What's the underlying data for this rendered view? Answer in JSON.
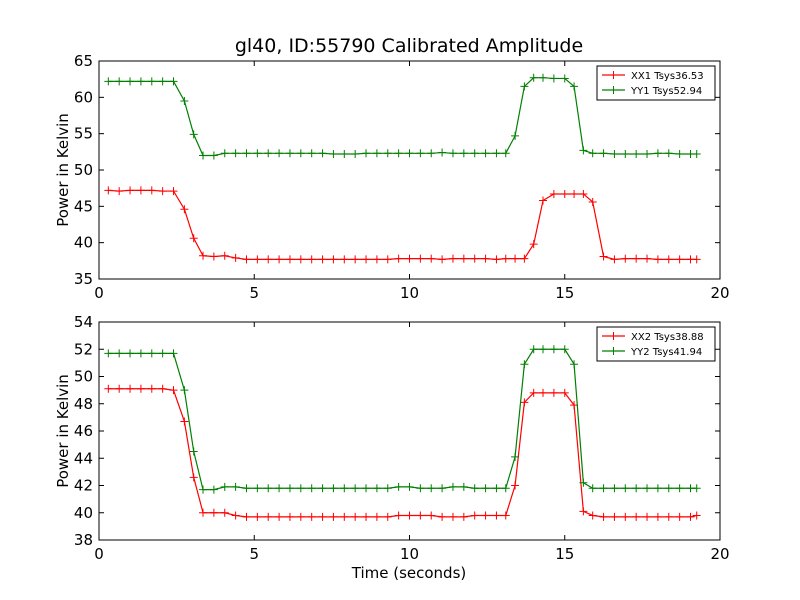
{
  "chart_data": [
    {
      "type": "line",
      "title": "gl40, ID:55790 Calibrated Amplitude",
      "xlabel": "",
      "ylabel": "Power in Kelvin",
      "xlim": [
        0,
        20
      ],
      "ylim": [
        35,
        65
      ],
      "xticks": [
        0,
        5,
        10,
        15,
        20
      ],
      "yticks": [
        35,
        40,
        45,
        50,
        55,
        60,
        65
      ],
      "grid": false,
      "legend_position": "top-right",
      "x": [
        0.3,
        0.65,
        1.0,
        1.35,
        1.7,
        2.05,
        2.4,
        2.75,
        3.05,
        3.35,
        3.7,
        4.05,
        4.4,
        4.75,
        5.1,
        5.45,
        5.8,
        6.15,
        6.5,
        6.85,
        7.2,
        7.55,
        7.9,
        8.25,
        8.6,
        8.95,
        9.3,
        9.65,
        10.0,
        10.35,
        10.7,
        11.05,
        11.4,
        11.75,
        12.1,
        12.45,
        12.8,
        13.1,
        13.4,
        13.7,
        14.0,
        14.3,
        14.65,
        15.0,
        15.3,
        15.6,
        15.9,
        16.25,
        16.6,
        16.95,
        17.3,
        17.65,
        18.0,
        18.35,
        18.7,
        19.05,
        19.25
      ],
      "series": [
        {
          "name": "XX1 Tsys36.53",
          "color": "#ff0000",
          "y": [
            47.2,
            47.1,
            47.2,
            47.2,
            47.2,
            47.1,
            47.1,
            44.6,
            40.6,
            38.2,
            38.1,
            38.2,
            37.9,
            37.7,
            37.7,
            37.7,
            37.7,
            37.7,
            37.7,
            37.7,
            37.7,
            37.7,
            37.7,
            37.7,
            37.7,
            37.7,
            37.7,
            37.8,
            37.8,
            37.8,
            37.8,
            37.7,
            37.8,
            37.8,
            37.8,
            37.8,
            37.7,
            37.8,
            37.8,
            37.8,
            39.8,
            45.8,
            46.7,
            46.7,
            46.7,
            46.7,
            45.6,
            38.1,
            37.7,
            37.8,
            37.8,
            37.8,
            37.7,
            37.7,
            37.7,
            37.7,
            37.7
          ]
        },
        {
          "name": "YY1 Tsys52.94",
          "color": "#008000",
          "y": [
            62.2,
            62.2,
            62.2,
            62.2,
            62.2,
            62.2,
            62.2,
            59.5,
            54.9,
            52.0,
            52.0,
            52.3,
            52.3,
            52.3,
            52.3,
            52.3,
            52.3,
            52.3,
            52.3,
            52.3,
            52.3,
            52.2,
            52.2,
            52.2,
            52.3,
            52.3,
            52.3,
            52.3,
            52.3,
            52.3,
            52.3,
            52.4,
            52.3,
            52.3,
            52.3,
            52.3,
            52.3,
            52.3,
            54.7,
            61.5,
            62.7,
            62.7,
            62.6,
            62.6,
            61.5,
            52.7,
            52.3,
            52.3,
            52.2,
            52.2,
            52.2,
            52.2,
            52.3,
            52.3,
            52.2,
            52.2,
            52.2
          ]
        }
      ]
    },
    {
      "type": "line",
      "title": "",
      "xlabel": "Time (seconds)",
      "ylabel": "Power in Kelvin",
      "xlim": [
        0,
        20
      ],
      "ylim": [
        38,
        54
      ],
      "xticks": [
        0,
        5,
        10,
        15,
        20
      ],
      "yticks": [
        38,
        40,
        42,
        44,
        46,
        48,
        50,
        52,
        54
      ],
      "grid": false,
      "legend_position": "top-right",
      "x": [
        0.3,
        0.65,
        1.0,
        1.35,
        1.7,
        2.05,
        2.4,
        2.75,
        3.05,
        3.35,
        3.7,
        4.05,
        4.4,
        4.75,
        5.1,
        5.45,
        5.8,
        6.15,
        6.5,
        6.85,
        7.2,
        7.55,
        7.9,
        8.25,
        8.6,
        8.95,
        9.3,
        9.65,
        10.0,
        10.35,
        10.7,
        11.05,
        11.4,
        11.75,
        12.1,
        12.45,
        12.8,
        13.1,
        13.4,
        13.7,
        14.0,
        14.3,
        14.65,
        15.0,
        15.3,
        15.6,
        15.9,
        16.25,
        16.6,
        16.95,
        17.3,
        17.65,
        18.0,
        18.35,
        18.7,
        19.05,
        19.25
      ],
      "series": [
        {
          "name": "XX2 Tsys38.88",
          "color": "#ff0000",
          "y": [
            49.1,
            49.1,
            49.1,
            49.1,
            49.1,
            49.1,
            49.0,
            46.7,
            42.6,
            40.0,
            40.0,
            40.0,
            39.8,
            39.7,
            39.7,
            39.7,
            39.7,
            39.7,
            39.7,
            39.7,
            39.7,
            39.7,
            39.7,
            39.7,
            39.7,
            39.7,
            39.7,
            39.8,
            39.8,
            39.8,
            39.8,
            39.7,
            39.7,
            39.7,
            39.8,
            39.8,
            39.8,
            39.8,
            42.0,
            48.1,
            48.8,
            48.8,
            48.8,
            48.8,
            47.9,
            40.1,
            39.8,
            39.7,
            39.7,
            39.7,
            39.7,
            39.7,
            39.7,
            39.7,
            39.7,
            39.7,
            39.8
          ]
        },
        {
          "name": "YY2 Tsys41.94",
          "color": "#008000",
          "y": [
            51.7,
            51.7,
            51.7,
            51.7,
            51.7,
            51.7,
            51.7,
            49.0,
            44.5,
            41.7,
            41.7,
            41.9,
            41.9,
            41.8,
            41.8,
            41.8,
            41.8,
            41.8,
            41.8,
            41.8,
            41.8,
            41.8,
            41.8,
            41.8,
            41.8,
            41.8,
            41.8,
            41.9,
            41.9,
            41.8,
            41.8,
            41.8,
            41.9,
            41.9,
            41.8,
            41.8,
            41.8,
            41.8,
            44.1,
            50.9,
            52.0,
            52.0,
            52.0,
            52.0,
            50.9,
            42.2,
            41.8,
            41.8,
            41.8,
            41.8,
            41.8,
            41.8,
            41.8,
            41.8,
            41.8,
            41.8,
            41.8
          ]
        }
      ]
    }
  ]
}
